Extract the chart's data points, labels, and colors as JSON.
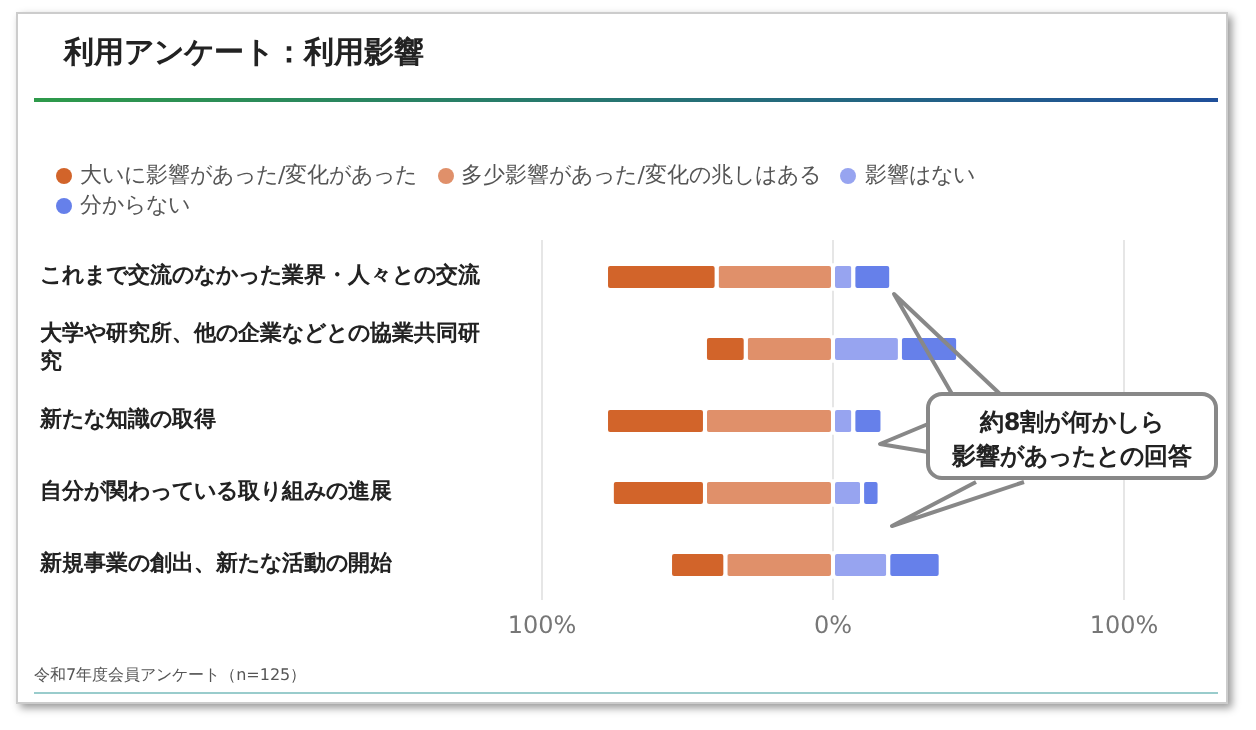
{
  "chart_data": {
    "type": "bar",
    "orientation": "horizontal",
    "stacked": true,
    "title": "利用アンケート：利用影響",
    "categories": [
      "これまで交流のなかった業界・人々との交流",
      "大学や研究所、他の企業などとの協業共同研究",
      "新たな知識の取得",
      "自分が関わっている取り組みの進展",
      "新規事業の創出、新たな活動の開始"
    ],
    "series": [
      {
        "name": "多少影響があった/変化の兆しはある",
        "color": "#e0906a",
        "values": [
          -40,
          -30,
          -44,
          -44,
          -37
        ]
      },
      {
        "name": "大いに影響があった/変化があった",
        "color": "#d2642a",
        "values": [
          -38,
          -14,
          -34,
          -32,
          -19
        ]
      },
      {
        "name": "影響はない",
        "color": "#97a4f0",
        "values": [
          7,
          23,
          7,
          10,
          19
        ]
      },
      {
        "name": "分からない",
        "color": "#6680ea",
        "values": [
          13,
          20,
          10,
          6,
          18
        ]
      }
    ],
    "xlim": [
      -100,
      100
    ],
    "xticks": [
      {
        "value": -100,
        "label": "100%"
      },
      {
        "value": 0,
        "label": "0%"
      },
      {
        "value": 100,
        "label": "100%"
      }
    ],
    "grid": "x",
    "legend": "top",
    "annotations": [
      "約8割が何かしら",
      "影響があったとの回答",
      "令和7年度会員アンケート（n=125）"
    ]
  }
}
